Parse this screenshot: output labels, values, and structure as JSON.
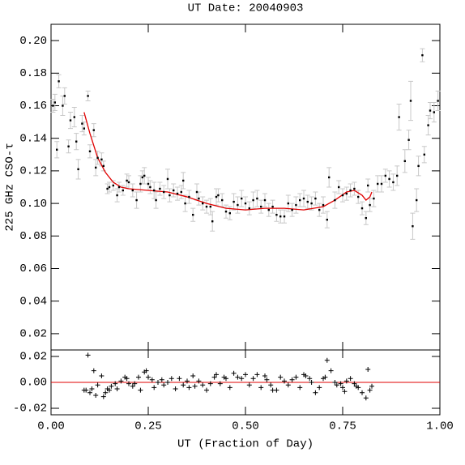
{
  "chart_data": [
    {
      "type": "scatter",
      "title": "UT Date: 20040903",
      "y_label": "225 GHz CSO-τ",
      "xlim": [
        0,
        1
      ],
      "ylim": [
        0.01,
        0.21
      ],
      "yticks": [
        0.02,
        0.04,
        0.06,
        0.08,
        {
          "value": 0.1,
          "label": "0.10"
        },
        0.12,
        0.14,
        0.16,
        0.18,
        {
          "value": 0.2,
          "label": "0.20"
        }
      ],
      "color": "#000000",
      "error_color": "#c8c8c8",
      "x": [
        0.005,
        0.01,
        0.015,
        0.02,
        0.03,
        0.035,
        0.045,
        0.05,
        0.06,
        0.065,
        0.07,
        0.08,
        0.085,
        0.095,
        0.1,
        0.11,
        0.115,
        0.12,
        0.13,
        0.135,
        0.145,
        0.15,
        0.16,
        0.17,
        0.175,
        0.185,
        0.195,
        0.2,
        0.21,
        0.22,
        0.23,
        0.235,
        0.24,
        0.25,
        0.255,
        0.265,
        0.27,
        0.28,
        0.29,
        0.3,
        0.305,
        0.315,
        0.325,
        0.335,
        0.34,
        0.345,
        0.355,
        0.365,
        0.375,
        0.38,
        0.39,
        0.4,
        0.41,
        0.415,
        0.425,
        0.43,
        0.44,
        0.45,
        0.46,
        0.47,
        0.48,
        0.49,
        0.5,
        0.51,
        0.52,
        0.53,
        0.54,
        0.55,
        0.56,
        0.57,
        0.58,
        0.59,
        0.6,
        0.61,
        0.62,
        0.63,
        0.64,
        0.65,
        0.66,
        0.67,
        0.68,
        0.69,
        0.7,
        0.71,
        0.715,
        0.73,
        0.74,
        0.75,
        0.76,
        0.77,
        0.78,
        0.79,
        0.8,
        0.81,
        0.815,
        0.82,
        0.83,
        0.84,
        0.85,
        0.86,
        0.87,
        0.88,
        0.89,
        0.895,
        0.91,
        0.92,
        0.925,
        0.93,
        0.94,
        0.945,
        0.955,
        0.96,
        0.97,
        0.975,
        0.985,
        0.995
      ],
      "values": [
        0.16,
        0.162,
        0.133,
        0.175,
        0.16,
        0.166,
        0.135,
        0.151,
        0.153,
        0.138,
        0.121,
        0.149,
        0.146,
        0.166,
        0.132,
        0.145,
        0.122,
        0.128,
        0.127,
        0.123,
        0.109,
        0.11,
        0.111,
        0.105,
        0.11,
        0.108,
        0.114,
        0.113,
        0.108,
        0.102,
        0.112,
        0.116,
        0.117,
        0.112,
        0.11,
        0.108,
        0.102,
        0.109,
        0.107,
        0.115,
        0.105,
        0.108,
        0.106,
        0.107,
        0.114,
        0.1,
        0.104,
        0.093,
        0.107,
        0.103,
        0.1,
        0.098,
        0.098,
        0.089,
        0.104,
        0.105,
        0.102,
        0.095,
        0.094,
        0.101,
        0.099,
        0.103,
        0.1,
        0.097,
        0.102,
        0.103,
        0.098,
        0.102,
        0.096,
        0.098,
        0.093,
        0.092,
        0.092,
        0.1,
        0.096,
        0.099,
        0.102,
        0.103,
        0.101,
        0.1,
        0.103,
        0.096,
        0.099,
        0.09,
        0.116,
        0.102,
        0.11,
        0.105,
        0.106,
        0.108,
        0.109,
        0.104,
        0.097,
        0.091,
        0.111,
        0.099,
        0.103,
        0.112,
        0.112,
        0.117,
        0.115,
        0.113,
        0.117,
        0.153,
        0.126,
        0.139,
        0.163,
        0.086,
        0.102,
        0.123,
        0.191,
        0.13,
        0.148,
        0.157,
        0.156,
        0.163
      ],
      "errors": [
        0.004,
        0.005,
        0.005,
        0.004,
        0.006,
        0.005,
        0.004,
        0.005,
        0.006,
        0.005,
        0.006,
        0.005,
        0.004,
        0.003,
        0.004,
        0.004,
        0.005,
        0.004,
        0.004,
        0.003,
        0.003,
        0.003,
        0.003,
        0.004,
        0.003,
        0.003,
        0.004,
        0.004,
        0.004,
        0.005,
        0.005,
        0.004,
        0.005,
        0.004,
        0.004,
        0.005,
        0.005,
        0.004,
        0.004,
        0.006,
        0.004,
        0.004,
        0.004,
        0.004,
        0.005,
        0.005,
        0.004,
        0.004,
        0.005,
        0.004,
        0.004,
        0.004,
        0.005,
        0.006,
        0.005,
        0.004,
        0.004,
        0.004,
        0.004,
        0.005,
        0.005,
        0.005,
        0.004,
        0.004,
        0.005,
        0.005,
        0.004,
        0.004,
        0.004,
        0.004,
        0.004,
        0.004,
        0.004,
        0.005,
        0.004,
        0.005,
        0.004,
        0.005,
        0.004,
        0.004,
        0.004,
        0.004,
        0.005,
        0.005,
        0.006,
        0.005,
        0.004,
        0.004,
        0.004,
        0.004,
        0.004,
        0.004,
        0.004,
        0.004,
        0.004,
        0.004,
        0.005,
        0.005,
        0.005,
        0.004,
        0.005,
        0.005,
        0.006,
        0.008,
        0.007,
        0.006,
        0.012,
        0.008,
        0.007,
        0.006,
        0.004,
        0.005,
        0.006,
        0.005,
        0.006,
        0.006
      ],
      "fit": {
        "color": "#e00000",
        "x": [
          0.085,
          0.1,
          0.12,
          0.14,
          0.16,
          0.18,
          0.2,
          0.25,
          0.3,
          0.35,
          0.4,
          0.45,
          0.5,
          0.55,
          0.6,
          0.65,
          0.7,
          0.73,
          0.76,
          0.78,
          0.8,
          0.81,
          0.82,
          0.825
        ],
        "values": [
          0.156,
          0.143,
          0.128,
          0.119,
          0.113,
          0.11,
          0.109,
          0.108,
          0.107,
          0.104,
          0.1,
          0.097,
          0.096,
          0.097,
          0.097,
          0.096,
          0.098,
          0.102,
          0.107,
          0.108,
          0.105,
          0.102,
          0.104,
          0.107
        ]
      }
    },
    {
      "type": "residual",
      "x_label": "UT (Fraction of Day)",
      "xlim": [
        0,
        1
      ],
      "ylim": [
        -0.025,
        0.025
      ],
      "xticks": [
        {
          "value": 0,
          "label": "0.00"
        },
        0.25,
        {
          "value": 0.5,
          "label": "0.50"
        },
        0.75,
        {
          "value": 1,
          "label": "1.00"
        }
      ],
      "yticks": [
        0.02,
        {
          "value": 0,
          "label": "0.00"
        },
        -0.02
      ],
      "color": "#000000",
      "zero_color": "#e00000",
      "x": [
        0.085,
        0.09,
        0.095,
        0.1,
        0.105,
        0.11,
        0.115,
        0.12,
        0.13,
        0.135,
        0.14,
        0.145,
        0.15,
        0.155,
        0.165,
        0.17,
        0.18,
        0.19,
        0.195,
        0.2,
        0.21,
        0.215,
        0.225,
        0.23,
        0.24,
        0.245,
        0.25,
        0.26,
        0.265,
        0.275,
        0.285,
        0.29,
        0.3,
        0.31,
        0.32,
        0.33,
        0.34,
        0.35,
        0.355,
        0.365,
        0.37,
        0.38,
        0.39,
        0.4,
        0.41,
        0.42,
        0.425,
        0.435,
        0.445,
        0.45,
        0.46,
        0.47,
        0.48,
        0.49,
        0.5,
        0.51,
        0.52,
        0.53,
        0.54,
        0.55,
        0.555,
        0.565,
        0.57,
        0.58,
        0.59,
        0.6,
        0.61,
        0.62,
        0.63,
        0.64,
        0.65,
        0.655,
        0.665,
        0.67,
        0.68,
        0.69,
        0.7,
        0.705,
        0.71,
        0.72,
        0.73,
        0.735,
        0.745,
        0.75,
        0.755,
        0.76,
        0.77,
        0.78,
        0.785,
        0.79,
        0.8,
        0.81,
        0.815,
        0.82,
        0.825
      ],
      "values": [
        -0.006,
        -0.006,
        0.021,
        -0.008,
        -0.005,
        0.009,
        -0.01,
        -0.002,
        0.005,
        -0.011,
        -0.008,
        -0.005,
        -0.006,
        -0.003,
        -0.001,
        -0.005,
        0.001,
        0.004,
        0.003,
        -0.001,
        -0.003,
        -0.001,
        0.004,
        -0.006,
        0.008,
        0.009,
        0.004,
        0.002,
        -0.004,
        0,
        0.002,
        -0.002,
        0,
        0.003,
        -0.005,
        0.003,
        -0.002,
        0.001,
        -0.004,
        0.005,
        -0.003,
        0.001,
        -0.002,
        -0.006,
        -0.001,
        0.004,
        0.006,
        -0.001,
        0.004,
        0.003,
        -0.004,
        0.007,
        0.004,
        0.003,
        0.006,
        -0.002,
        0.003,
        0.006,
        -0.004,
        0.005,
        0.002,
        -0.002,
        -0.006,
        -0.006,
        0.004,
        0.001,
        -0.002,
        0.002,
        0.004,
        -0.004,
        0.006,
        0.005,
        0.003,
        0,
        -0.008,
        -0.004,
        0.003,
        0.004,
        0.017,
        0.009,
        0,
        -0.002,
        -0.001,
        -0.004,
        -0.007,
        0.001,
        0.003,
        -0.001,
        -0.003,
        -0.004,
        -0.008,
        -0.012,
        0.01,
        -0.006,
        -0.003
      ]
    }
  ]
}
